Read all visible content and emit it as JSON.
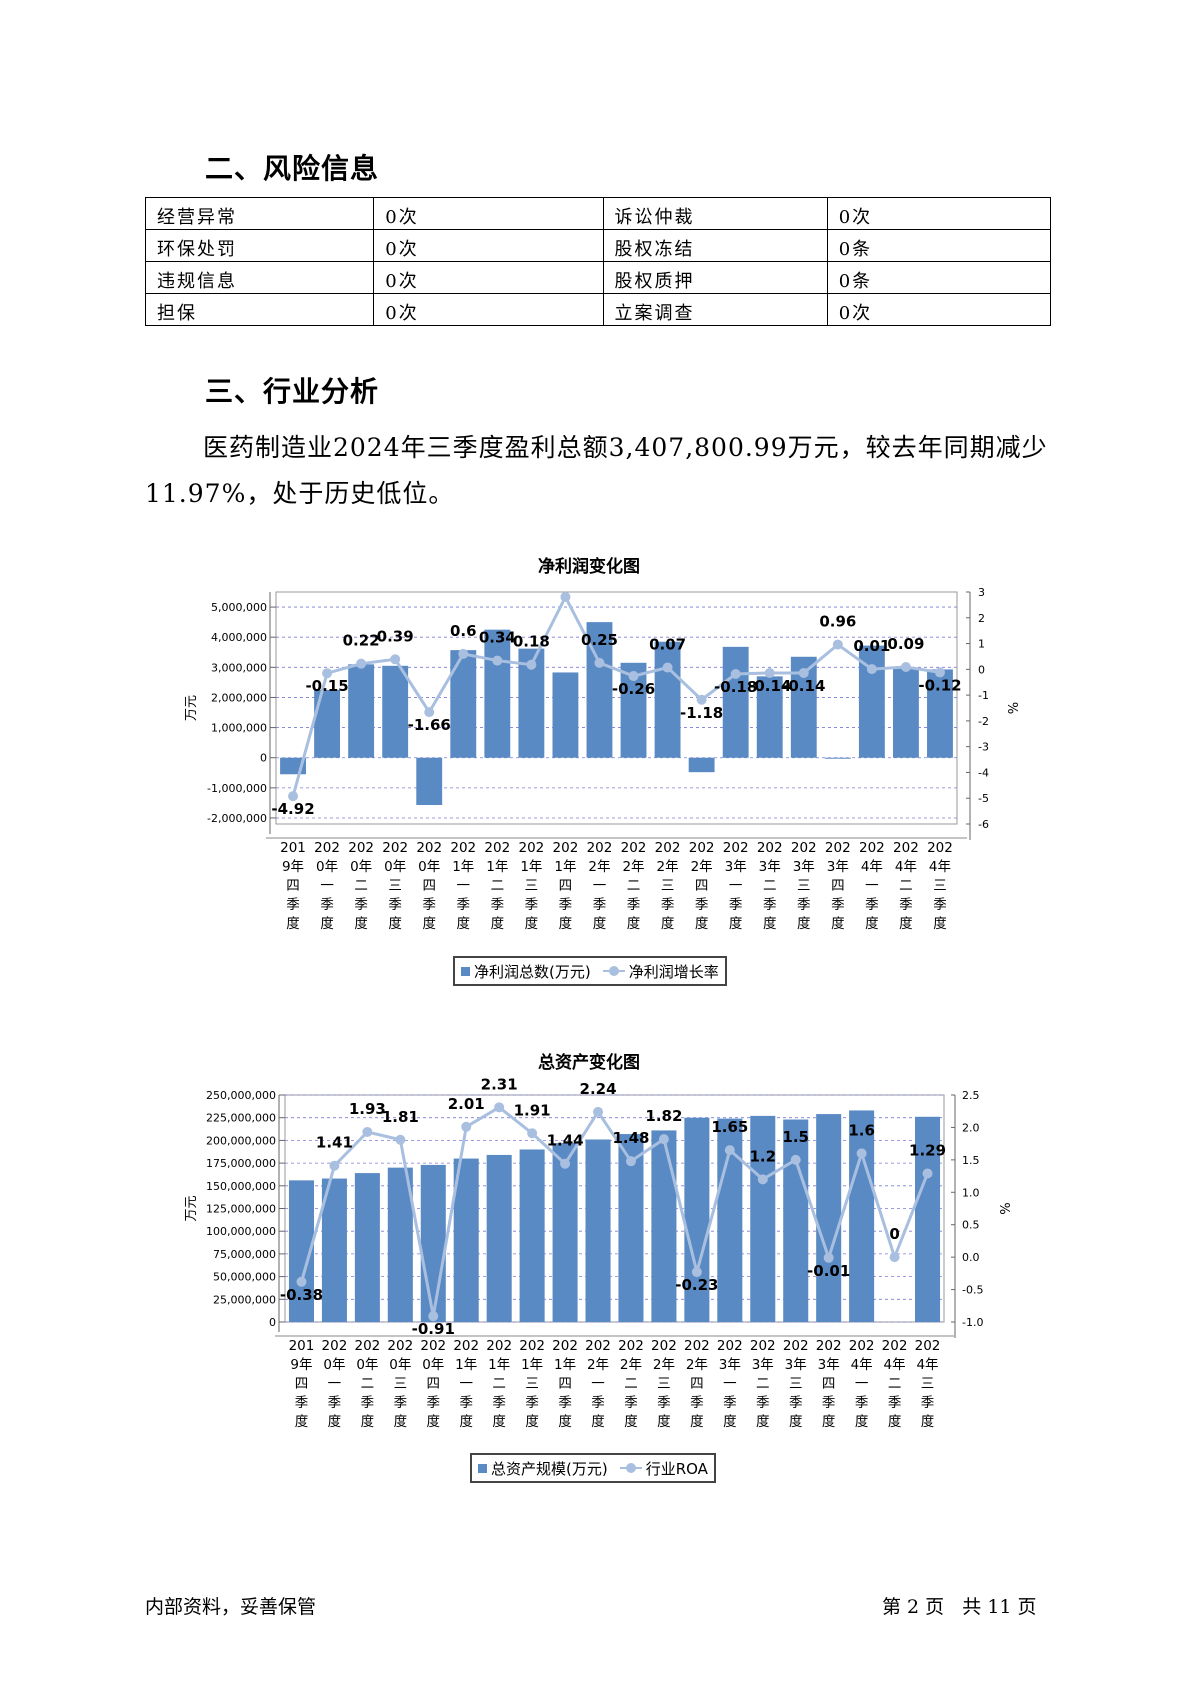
{
  "section2": {
    "title": "二、风险信息"
  },
  "risk_table": [
    [
      "经营异常",
      "0次",
      "诉讼仲裁",
      "0次"
    ],
    [
      "环保处罚",
      "0次",
      "股权冻结",
      "0条"
    ],
    [
      "违规信息",
      "0次",
      "股权质押",
      "0条"
    ],
    [
      "担保",
      "0次",
      "立案调查",
      "0次"
    ]
  ],
  "section3": {
    "title": "三、行业分析"
  },
  "paragraph": "医药制造业2024年三季度盈利总额3,407,800.99万元，较去年同期减少11.97%，处于历史低位。",
  "footer": {
    "left": "内部资料，妥善保管",
    "right": "第 2 页   共 11 页"
  },
  "colors": {
    "bar": "#5a8ac4",
    "line": "#a9bfe0",
    "grid": "#7b7bd6"
  },
  "chart_data": [
    {
      "type": "bar",
      "title": "净利润变化图",
      "ylabel": "万元",
      "y2label": "%",
      "categories": [
        "2019年四季度",
        "2020年一季度",
        "2020年二季度",
        "2020年三季度",
        "2020年四季度",
        "2021年一季度",
        "2021年二季度",
        "2021年三季度",
        "2021年四季度",
        "2022年一季度",
        "2022年二季度",
        "2022年三季度",
        "2022年四季度",
        "2023年一季度",
        "2023年二季度",
        "2023年三季度",
        "2023年四季度",
        "2024年一季度",
        "2024年二季度",
        "2024年三季度"
      ],
      "tick_labels": [
        [
          "201",
          "9年",
          "四",
          "季",
          "度"
        ],
        [
          "202",
          "0年",
          "一",
          "季",
          "度"
        ],
        [
          "202",
          "0年",
          "二",
          "季",
          "度"
        ],
        [
          "202",
          "0年",
          "三",
          "季",
          "度"
        ],
        [
          "202",
          "0年",
          "四",
          "季",
          "度"
        ],
        [
          "202",
          "1年",
          "一",
          "季",
          "度"
        ],
        [
          "202",
          "1年",
          "二",
          "季",
          "度"
        ],
        [
          "202",
          "1年",
          "三",
          "季",
          "度"
        ],
        [
          "202",
          "1年",
          "四",
          "季",
          "度"
        ],
        [
          "202",
          "2年",
          "一",
          "季",
          "度"
        ],
        [
          "202",
          "2年",
          "二",
          "季",
          "度"
        ],
        [
          "202",
          "2年",
          "三",
          "季",
          "度"
        ],
        [
          "202",
          "2年",
          "四",
          "季",
          "度"
        ],
        [
          "202",
          "3年",
          "一",
          "季",
          "度"
        ],
        [
          "202",
          "3年",
          "二",
          "季",
          "度"
        ],
        [
          "202",
          "3年",
          "三",
          "季",
          "度"
        ],
        [
          "202",
          "3年",
          "四",
          "季",
          "度"
        ],
        [
          "202",
          "4年",
          "一",
          "季",
          "度"
        ],
        [
          "202",
          "4年",
          "二",
          "季",
          "度"
        ],
        [
          "202",
          "4年",
          "三",
          "季",
          "度"
        ]
      ],
      "series": [
        {
          "name": "净利润总数(万元)",
          "type": "bar",
          "values": [
            -550000,
            2250000,
            3100000,
            3050000,
            -1570000,
            3570000,
            4250000,
            3620000,
            2830000,
            4500000,
            3150000,
            3850000,
            -480000,
            3680000,
            2700000,
            3350000,
            -30000,
            3720000,
            2980000,
            2930000
          ]
        },
        {
          "name": "净利润增长率",
          "type": "line",
          "values": [
            -4.92,
            -0.15,
            0.22,
            0.39,
            -1.66,
            0.6,
            0.34,
            0.18,
            2.81,
            0.25,
            -0.26,
            0.07,
            -1.18,
            -0.18,
            -0.14,
            -0.14,
            0.96,
            0.01,
            0.09,
            -0.12
          ]
        }
      ],
      "y_ticks": [
        "5,000,000",
        "4,000,000",
        "3,000,000",
        "2,000,000",
        "1,000,000",
        "0",
        "-1,000,000",
        "-2,000,000"
      ],
      "y2_ticks": [
        "3",
        "2",
        "1",
        "0",
        "-1",
        "-2",
        "-3",
        "-4",
        "-5",
        "-6"
      ],
      "ylim": [
        -2200000,
        5500000
      ],
      "y2lim": [
        -6,
        3
      ]
    },
    {
      "type": "bar",
      "title": "总资产变化图",
      "ylabel": "万元",
      "y2label": "%",
      "categories": [
        "2019年四季度",
        "2020年一季度",
        "2020年二季度",
        "2020年三季度",
        "2020年四季度",
        "2021年一季度",
        "2021年二季度",
        "2021年三季度",
        "2021年四季度",
        "2022年一季度",
        "2022年二季度",
        "2022年三季度",
        "2022年四季度",
        "2023年一季度",
        "2023年二季度",
        "2023年三季度",
        "2023年四季度",
        "2024年一季度",
        "2024年二季度",
        "2024年三季度"
      ],
      "tick_labels": [
        [
          "201",
          "9年",
          "四",
          "季",
          "度"
        ],
        [
          "202",
          "0年",
          "一",
          "季",
          "度"
        ],
        [
          "202",
          "0年",
          "二",
          "季",
          "度"
        ],
        [
          "202",
          "0年",
          "三",
          "季",
          "度"
        ],
        [
          "202",
          "0年",
          "四",
          "季",
          "度"
        ],
        [
          "202",
          "1年",
          "一",
          "季",
          "度"
        ],
        [
          "202",
          "1年",
          "二",
          "季",
          "度"
        ],
        [
          "202",
          "1年",
          "三",
          "季",
          "度"
        ],
        [
          "202",
          "1年",
          "四",
          "季",
          "度"
        ],
        [
          "202",
          "2年",
          "一",
          "季",
          "度"
        ],
        [
          "202",
          "2年",
          "二",
          "季",
          "度"
        ],
        [
          "202",
          "2年",
          "三",
          "季",
          "度"
        ],
        [
          "202",
          "2年",
          "四",
          "季",
          "度"
        ],
        [
          "202",
          "3年",
          "一",
          "季",
          "度"
        ],
        [
          "202",
          "3年",
          "二",
          "季",
          "度"
        ],
        [
          "202",
          "3年",
          "三",
          "季",
          "度"
        ],
        [
          "202",
          "3年",
          "四",
          "季",
          "度"
        ],
        [
          "202",
          "4年",
          "一",
          "季",
          "度"
        ],
        [
          "202",
          "4年",
          "二",
          "季",
          "度"
        ],
        [
          "202",
          "4年",
          "三",
          "季",
          "度"
        ]
      ],
      "series": [
        {
          "name": "总资产规模(万元)",
          "type": "bar",
          "values": [
            156000000,
            158000000,
            164000000,
            170000000,
            173000000,
            180000000,
            184000000,
            190000000,
            197000000,
            201000000,
            207000000,
            211000000,
            225000000,
            224000000,
            227000000,
            223000000,
            229000000,
            233000000,
            null,
            226000000
          ]
        },
        {
          "name": "行业ROA",
          "type": "line",
          "values": [
            -0.38,
            1.41,
            1.93,
            1.81,
            -0.91,
            2.01,
            2.31,
            1.91,
            1.44,
            2.24,
            1.48,
            1.82,
            -0.23,
            1.65,
            1.2,
            1.5,
            -0.01,
            1.6,
            0,
            1.29
          ]
        }
      ],
      "y_ticks": [
        "250,000,000",
        "225,000,000",
        "200,000,000",
        "175,000,000",
        "150,000,000",
        "125,000,000",
        "100,000,000",
        "75,000,000",
        "50,000,000",
        "25,000,000",
        "0"
      ],
      "y2_ticks": [
        "2.5",
        "2.0",
        "1.5",
        "1.0",
        "0.5",
        "0.0",
        "-0.5",
        "-1.0"
      ],
      "ylim": [
        0,
        250000000
      ],
      "y2lim": [
        -1.0,
        2.5
      ]
    }
  ]
}
